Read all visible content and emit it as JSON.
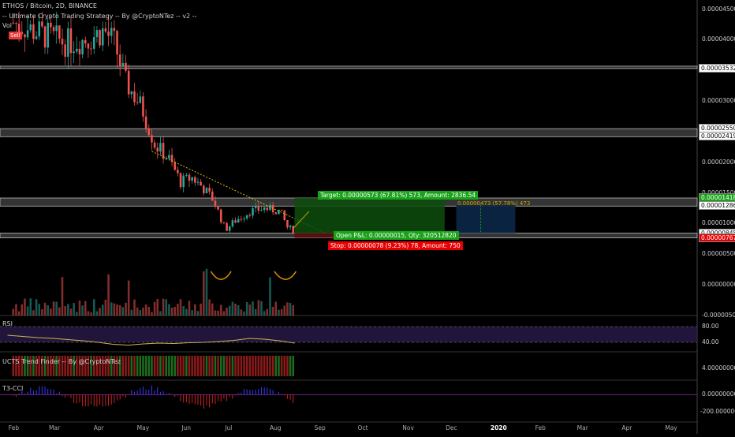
{
  "header": {
    "symbol_line": "ETHOS / Bitcoin, 2D, BINANCE",
    "strategy_line": "-- Ultimate Crypto Trading Strategy -- By @CryptoNTez -- v2 --",
    "vol_label": "Vol",
    "sell_label": "Sell"
  },
  "trade": {
    "target_text": "Target: 0.00000573 (67.81%) 573, Amount: 2836.54",
    "open_text": "Open P&L: 0.00000015, Qty: 320512820",
    "stop_text": "Stop: 0.00000078 (9.23%) 78, Amount: 750",
    "second_target_text": "0.00000473 (57.78%) 473"
  },
  "panes": {
    "rsi_label": "RSI",
    "ucts_label": "UCTS Trend Finder -- By @CryptoNTez",
    "cci_label": "T3-CCI"
  },
  "colors": {
    "up": "#26a69a",
    "down": "#ef5350",
    "target_green": "#1aa31a",
    "stop_red": "#e60000",
    "rsi_line": "#c9b458",
    "trendline": "#d4c200",
    "position_blue": "#0b2545"
  },
  "chart_data": [
    {
      "type": "candlestick",
      "title": "ETHOS / Bitcoin, 2D, BINANCE",
      "x_ticks": [
        "Feb",
        "Mar",
        "Apr",
        "May",
        "Jun",
        "Jul",
        "Aug",
        "Sep",
        "Oct",
        "Nov",
        "Dec",
        "2020",
        "Feb",
        "Mar",
        "Apr",
        "May"
      ],
      "y_ticks": [
        "0.00004500",
        "0.00004000",
        "0.00003000",
        "0.00002000",
        "0.00001500",
        "0.00001000",
        "0.00000500",
        "0.00000000",
        "-0.00000500"
      ],
      "ylim": [
        -5e-06,
        4.65e-05
      ],
      "price_level_labels": [
        "0.00003532",
        "0.00002550",
        "0.00002419",
        "0.00001418",
        "0.00001286",
        "0.00000845",
        "0.00000767"
      ],
      "close_path": [
        [
          "2019-02-01",
          4.28e-05
        ],
        [
          "2019-02-20",
          4.1e-05
        ],
        [
          "2019-03-10",
          3.95e-05
        ],
        [
          "2019-03-25",
          4.02e-05
        ],
        [
          "2019-04-05",
          4.15e-05
        ],
        [
          "2019-04-12",
          3.95e-05
        ],
        [
          "2019-04-20",
          3.3e-05
        ],
        [
          "2019-05-01",
          2.9e-05
        ],
        [
          "2019-05-10",
          2.3e-05
        ],
        [
          "2019-05-20",
          2.05e-05
        ],
        [
          "2019-05-28",
          1.68e-05
        ],
        [
          "2019-06-05",
          1.75e-05
        ],
        [
          "2019-06-12",
          1.6e-05
        ],
        [
          "2019-06-20",
          1.38e-05
        ],
        [
          "2019-06-28",
          9e-06
        ],
        [
          "2019-07-05",
          1.05e-05
        ],
        [
          "2019-07-15",
          1.2e-05
        ],
        [
          "2019-07-25",
          1.25e-05
        ],
        [
          "2019-08-05",
          1.2e-05
        ],
        [
          "2019-08-10",
          9.4e-06
        ],
        [
          "2019-08-15",
          8.8e-06
        ]
      ],
      "annotations": {
        "target": "Target: 0.00000573 (67.81%) 573, Amount: 2836.54",
        "stop": "Stop: 0.00000078 (9.23%) 78, Amount: 750",
        "open_pnl": "Open P&L: 0.00000015, Qty: 320512820"
      }
    },
    {
      "type": "line",
      "title": "RSI",
      "y_ticks": [
        "80.00",
        "40.00"
      ],
      "ylim": [
        20,
        100
      ],
      "values": [
        58,
        55,
        52,
        50,
        47,
        44,
        40,
        35,
        33,
        36,
        38,
        37,
        39,
        40,
        42,
        45,
        50,
        48,
        44,
        38
      ]
    },
    {
      "type": "bar",
      "title": "UCTS Trend Finder -- By @CryptoNTez",
      "y_ticks": [
        "4.00000000"
      ]
    },
    {
      "type": "bar",
      "title": "T3-CCI",
      "y_ticks": [
        "0.00000000",
        "-200.00000000"
      ],
      "ylim": [
        -300,
        150
      ]
    }
  ]
}
